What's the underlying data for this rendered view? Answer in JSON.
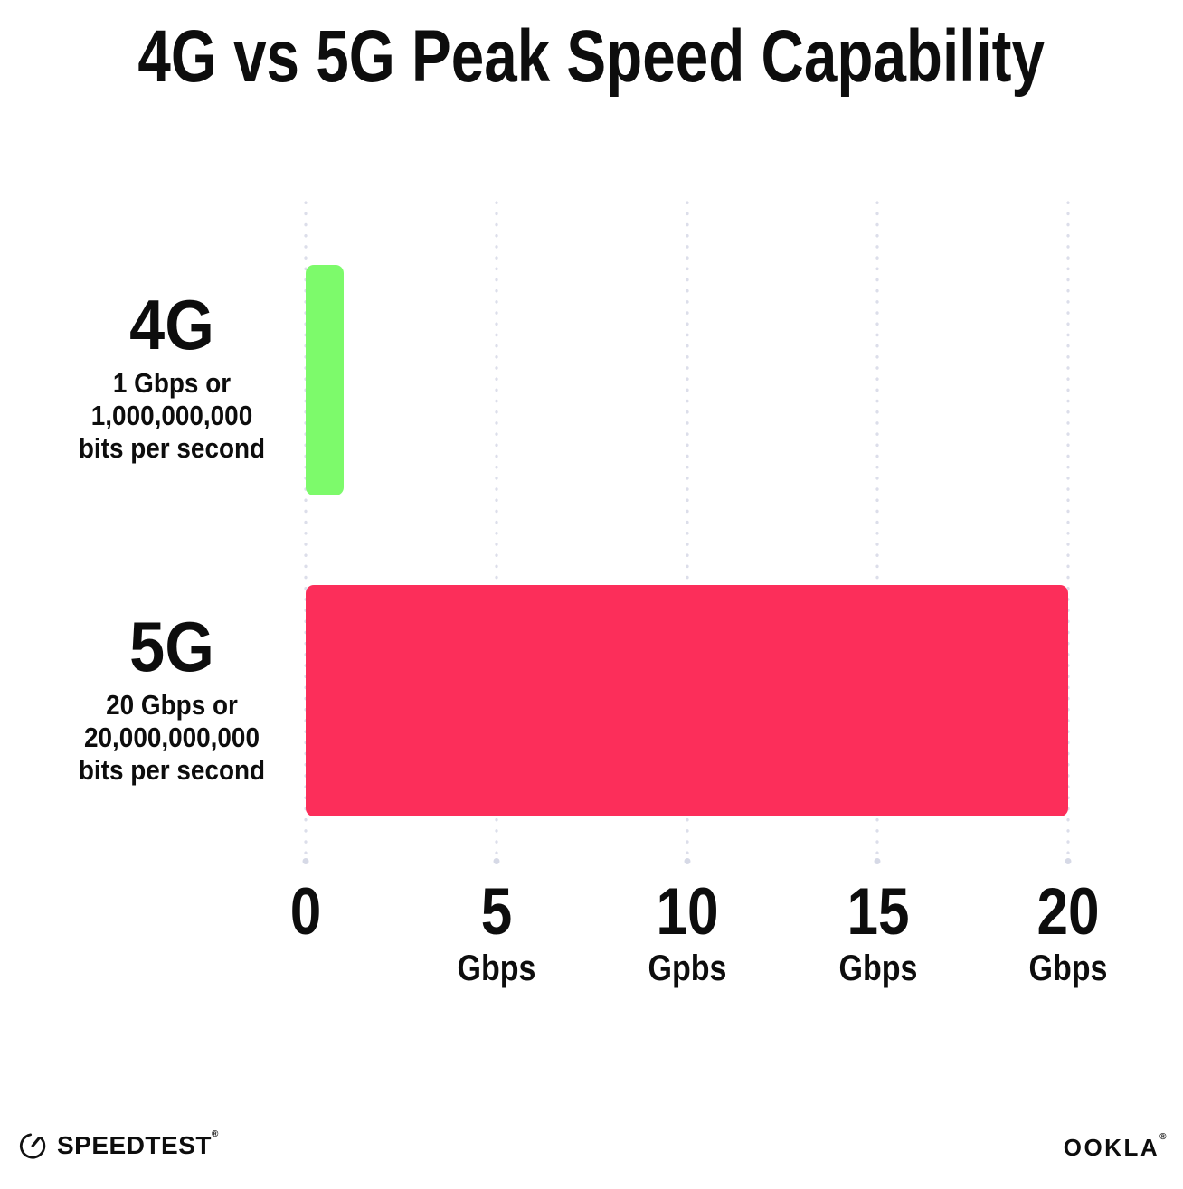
{
  "title": "4G vs 5G Peak Speed Capability",
  "chart_data": {
    "type": "bar",
    "orientation": "horizontal",
    "title": "4G vs 5G Peak Speed Capability",
    "categories": [
      "4G",
      "5G"
    ],
    "values": [
      1,
      20
    ],
    "xlim": [
      0,
      20
    ],
    "grid": "dotted vertical gridlines at each tick",
    "legend": "none",
    "bars": [
      {
        "label": "4G",
        "value_gbps": 1,
        "color": "#7DFA6B",
        "description_lines": [
          "1 Gbps or",
          "1,000,000,000",
          "bits per second"
        ]
      },
      {
        "label": "5G",
        "value_gbps": 20,
        "color": "#FC2E5A",
        "description_lines": [
          "20 Gbps or",
          "20,000,000,000",
          "bits per second"
        ]
      }
    ],
    "x_ticks": [
      {
        "label": "0",
        "unit": ""
      },
      {
        "label": "5",
        "unit": "Gbps"
      },
      {
        "label": "10",
        "unit": "Gpbs"
      },
      {
        "label": "15",
        "unit": "Gbps"
      },
      {
        "label": "20",
        "unit": "Gbps"
      }
    ]
  },
  "footer": {
    "speedtest": "SPEEDTEST",
    "speedtest_mark": "®",
    "ookla": "OOKLA",
    "ookla_mark": "®"
  },
  "colors": {
    "bar_4g": "#7DFA6B",
    "bar_5g": "#FC2E5A",
    "gridline": "#DCDEEA",
    "text": "#0D0D0D",
    "background": "#FFFFFF"
  }
}
